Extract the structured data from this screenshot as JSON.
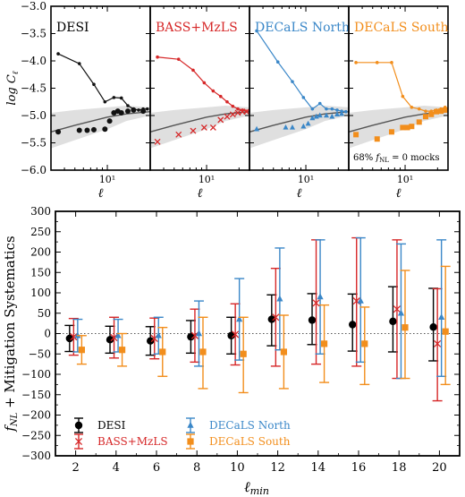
{
  "chart_data": [
    {
      "type": "line",
      "name": "DESI",
      "title": "DESI",
      "title_color": "#000000",
      "color": "#111111",
      "marker": "circle",
      "xlabel": "ℓ",
      "ylabel": "log C_ℓ",
      "xscale": "log",
      "xlim": [
        3,
        25
      ],
      "ylim": [
        -6.0,
        -3.0
      ],
      "yticks": [
        "−6.0",
        "−5.5",
        "−5.0",
        "−4.5",
        "−4.0",
        "−3.5",
        "−3.0"
      ],
      "ytick_values": [
        -6.0,
        -5.5,
        -5.0,
        -4.5,
        -4.0,
        -3.5,
        -3.0
      ],
      "xtick_label": "10¹",
      "band": {
        "x": [
          3,
          5,
          10,
          15,
          25
        ],
        "upper": [
          -4.95,
          -4.9,
          -4.85,
          -4.82,
          -4.85
        ],
        "lower": [
          -5.6,
          -5.45,
          -5.25,
          -5.1,
          -5.0
        ]
      },
      "mean_curve": {
        "x": [
          3,
          5,
          10,
          15,
          25
        ],
        "y": [
          -5.3,
          -5.18,
          -5.03,
          -4.97,
          -4.93
        ]
      },
      "line_points": {
        "x": [
          3.5,
          5.5,
          7.5,
          9.5,
          11.5,
          13.5,
          15.5,
          17.5,
          19.5,
          21.5,
          23.5
        ],
        "y": [
          -3.87,
          -4.05,
          -4.43,
          -4.75,
          -4.67,
          -4.68,
          -4.82,
          -4.88,
          -4.9,
          -4.88,
          -4.88
        ]
      },
      "marker_points": {
        "x": [
          3.5,
          5.5,
          6.5,
          7.5,
          9.5,
          10.5,
          11.5,
          12.5,
          13.5,
          15.5,
          17.5,
          21.5
        ],
        "y": [
          -5.3,
          -5.27,
          -5.27,
          -5.26,
          -5.25,
          -5.1,
          -4.95,
          -4.92,
          -4.95,
          -4.92,
          -4.9,
          -4.92
        ]
      }
    },
    {
      "type": "line",
      "name": "BASS+MzLS",
      "title": "BASS+MzLS",
      "title_color": "#d62728",
      "color": "#d62728",
      "marker": "x",
      "xlabel": "ℓ",
      "xscale": "log",
      "xlim": [
        3,
        25
      ],
      "ylim": [
        -6.0,
        -3.0
      ],
      "xtick_label": "10¹",
      "band": {
        "x": [
          3,
          5,
          10,
          15,
          25
        ],
        "upper": [
          -4.95,
          -4.9,
          -4.85,
          -4.82,
          -4.85
        ],
        "lower": [
          -5.6,
          -5.45,
          -5.25,
          -5.1,
          -5.0
        ]
      },
      "mean_curve": {
        "x": [
          3,
          5,
          10,
          15,
          25
        ],
        "y": [
          -5.3,
          -5.18,
          -5.03,
          -4.97,
          -4.93
        ]
      },
      "line_points": {
        "x": [
          3.5,
          5.5,
          7.5,
          9.5,
          11.5,
          13.5,
          15.5,
          17.5,
          19.5,
          21.5,
          23.5
        ],
        "y": [
          -3.93,
          -3.97,
          -4.17,
          -4.4,
          -4.55,
          -4.65,
          -4.75,
          -4.83,
          -4.88,
          -4.9,
          -4.92
        ]
      },
      "marker_points": {
        "x": [
          3.5,
          5.5,
          7.5,
          9.5,
          11.5,
          13.5,
          15.5,
          17.5,
          19.5,
          21.5,
          23.5
        ],
        "y": [
          -5.48,
          -5.35,
          -5.28,
          -5.22,
          -5.22,
          -5.08,
          -5.02,
          -4.98,
          -4.95,
          -4.93,
          -4.93
        ]
      }
    },
    {
      "type": "line",
      "name": "DECaLS North",
      "title": "DECaLS North",
      "title_color": "#3a87c8",
      "color": "#3a87c8",
      "marker": "triangle",
      "xlabel": "ℓ",
      "xscale": "log",
      "xlim": [
        3,
        25
      ],
      "ylim": [
        -6.0,
        -3.0
      ],
      "xtick_label": "10¹",
      "band": {
        "x": [
          3,
          5,
          10,
          15,
          25
        ],
        "upper": [
          -4.95,
          -4.9,
          -4.85,
          -4.82,
          -4.85
        ],
        "lower": [
          -5.6,
          -5.45,
          -5.25,
          -5.1,
          -5.0
        ]
      },
      "mean_curve": {
        "x": [
          3,
          5,
          10,
          15,
          25
        ],
        "y": [
          -5.3,
          -5.18,
          -5.03,
          -4.97,
          -4.93
        ]
      },
      "line_points": {
        "x": [
          3.5,
          5.5,
          7.5,
          9.5,
          11.5,
          13.5,
          15.5,
          17.5,
          19.5,
          21.5,
          23.5
        ],
        "y": [
          -3.45,
          -4.02,
          -4.38,
          -4.67,
          -4.88,
          -4.78,
          -4.88,
          -4.88,
          -4.9,
          -4.92,
          -4.93
        ]
      },
      "marker_points": {
        "x": [
          3.5,
          6.5,
          7.5,
          9.5,
          10.5,
          11.5,
          12.5,
          13.5,
          15.5,
          17.5,
          19.5,
          21.5
        ],
        "y": [
          -5.25,
          -5.22,
          -5.22,
          -5.2,
          -5.15,
          -5.05,
          -5.02,
          -5.0,
          -5.0,
          -5.02,
          -4.98,
          -4.97
        ]
      }
    },
    {
      "type": "line",
      "name": "DECaLS South",
      "title": "DECaLS South",
      "title_color": "#f28e1c",
      "color": "#f28e1c",
      "marker": "square",
      "xlabel": "ℓ",
      "xscale": "log",
      "xlim": [
        3,
        25
      ],
      "ylim": [
        -6.0,
        -3.0
      ],
      "xtick_label": "10¹",
      "annotation": "68% f_NL = 0 mocks",
      "band": {
        "x": [
          3,
          5,
          10,
          15,
          25
        ],
        "upper": [
          -4.95,
          -4.9,
          -4.85,
          -4.82,
          -4.85
        ],
        "lower": [
          -5.6,
          -5.45,
          -5.25,
          -5.1,
          -5.0
        ]
      },
      "mean_curve": {
        "x": [
          3,
          5,
          10,
          15,
          25
        ],
        "y": [
          -5.3,
          -5.18,
          -5.03,
          -4.97,
          -4.93
        ]
      },
      "line_points": {
        "x": [
          3.5,
          5.5,
          7.5,
          9.5,
          11.5,
          13.5,
          15.5,
          17.5,
          19.5,
          21.5,
          23.5
        ],
        "y": [
          -4.03,
          -4.03,
          -4.03,
          -4.65,
          -4.85,
          -4.88,
          -4.92,
          -4.92,
          -4.9,
          -4.88,
          -4.85
        ]
      },
      "marker_points": {
        "x": [
          3.5,
          5.5,
          7.5,
          9.5,
          10.5,
          11.5,
          13.5,
          15.5,
          17.5,
          19.5,
          21.5,
          23.5
        ],
        "y": [
          -5.35,
          -5.43,
          -5.3,
          -5.22,
          -5.22,
          -5.2,
          -5.12,
          -5.02,
          -4.98,
          -4.93,
          -4.92,
          -4.9
        ]
      }
    },
    {
      "type": "scatter",
      "name": "fnl-errorbars",
      "xlabel": "ℓ_min",
      "ylabel": "f_NL + Mitigation Systematics",
      "xlim": [
        1,
        21
      ],
      "ylim": [
        -300,
        300
      ],
      "xticks": [
        2,
        4,
        6,
        8,
        10,
        12,
        14,
        16,
        18,
        20
      ],
      "yticks": [
        -300,
        -250,
        -200,
        -150,
        -100,
        -50,
        0,
        50,
        100,
        150,
        200,
        250,
        300
      ],
      "ytick_labels": [
        "−300",
        "−250",
        "−200",
        "−150",
        "−100",
        "−50",
        "0",
        "50",
        "100",
        "150",
        "200",
        "250",
        "300"
      ],
      "categories": [
        "2",
        "4",
        "6",
        "8",
        "10",
        "12",
        "14",
        "16",
        "18",
        "20"
      ],
      "series": [
        {
          "name": "DESI",
          "color": "#000000",
          "marker": "circle",
          "offset": -0.3,
          "x": [
            2,
            4,
            6,
            8,
            10,
            12,
            14,
            16,
            18,
            20
          ],
          "y": [
            -12,
            -15,
            -18,
            -8,
            -5,
            35,
            33,
            22,
            30,
            16
          ],
          "err_low": [
            32,
            33,
            35,
            40,
            45,
            65,
            60,
            65,
            75,
            83
          ],
          "err_high": [
            32,
            33,
            35,
            40,
            45,
            60,
            65,
            75,
            85,
            95
          ]
        },
        {
          "name": "BASS+MzLS",
          "color": "#d62728",
          "marker": "x",
          "offset": -0.1,
          "x": [
            2,
            4,
            6,
            8,
            10,
            12,
            14,
            16,
            18,
            20
          ],
          "y": [
            -8,
            -10,
            -12,
            -5,
            -2,
            40,
            75,
            80,
            60,
            -25
          ],
          "err_low": [
            45,
            50,
            50,
            65,
            75,
            120,
            150,
            160,
            170,
            140
          ],
          "err_high": [
            45,
            50,
            50,
            65,
            75,
            120,
            155,
            155,
            170,
            135
          ]
        },
        {
          "name": "DECaLS North",
          "color": "#3a87c8",
          "marker": "triangle",
          "offset": 0.1,
          "x": [
            2,
            4,
            6,
            8,
            10,
            12,
            14,
            16,
            18,
            20
          ],
          "y": [
            -5,
            -5,
            -5,
            0,
            35,
            85,
            90,
            80,
            50,
            40
          ],
          "err_low": [
            40,
            40,
            45,
            80,
            100,
            125,
            140,
            150,
            160,
            145
          ],
          "err_high": [
            40,
            40,
            45,
            80,
            100,
            125,
            140,
            155,
            170,
            190
          ]
        },
        {
          "name": "DECaLS South",
          "color": "#f28e1c",
          "marker": "square",
          "offset": 0.3,
          "x": [
            2,
            4,
            6,
            8,
            10,
            12,
            14,
            16,
            18,
            20
          ],
          "y": [
            -40,
            -40,
            -45,
            -45,
            -50,
            -45,
            -25,
            -25,
            15,
            5
          ],
          "err_low": [
            35,
            40,
            60,
            90,
            95,
            90,
            95,
            100,
            125,
            130
          ],
          "err_high": [
            35,
            40,
            60,
            85,
            90,
            90,
            95,
            90,
            140,
            160
          ]
        }
      ],
      "zero_line": true,
      "legend": {
        "placement": "lower-left",
        "entries": [
          "DESI",
          "BASS+MzLS",
          "DECaLS North",
          "DECaLS South"
        ]
      }
    }
  ]
}
